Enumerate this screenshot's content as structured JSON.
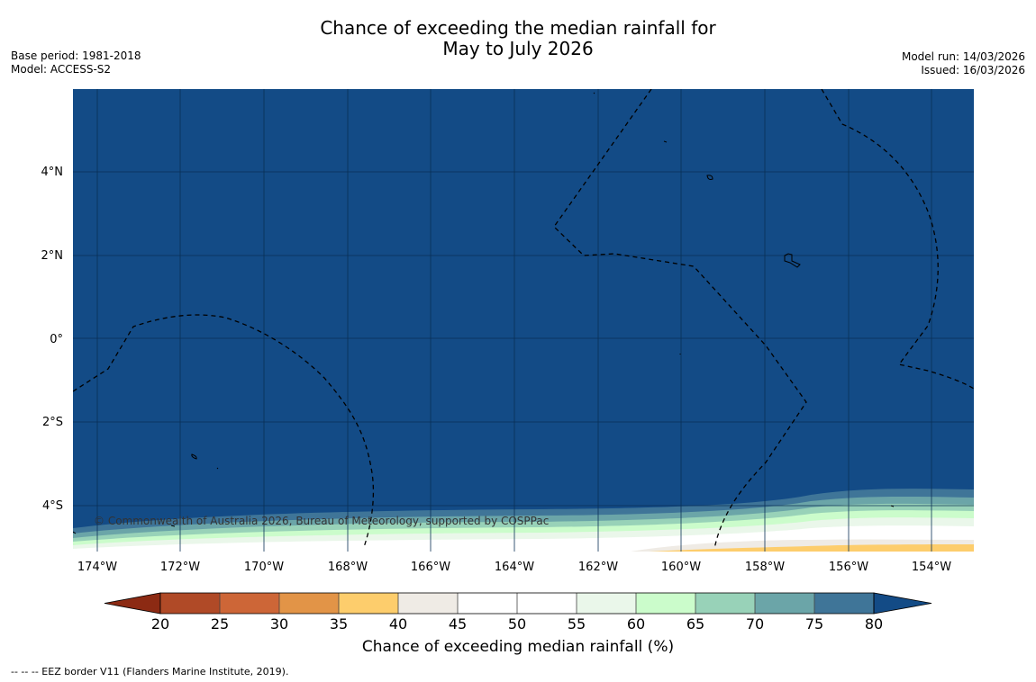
{
  "header": {
    "title_line1": "Chance of exceeding the median rainfall for",
    "title_line2": "May to July 2026",
    "base_period": "Base period: 1981-2018",
    "model": "Model: ACCESS-S2",
    "model_run": "Model run: 14/03/2026",
    "issued": "Issued: 16/03/2026"
  },
  "map": {
    "background_color": "#134b86",
    "lon_ticks": [
      "174°W",
      "172°W",
      "170°W",
      "168°W",
      "166°W",
      "164°W",
      "162°W",
      "160°W",
      "158°W",
      "156°W",
      "154°W"
    ],
    "lat_ticks": [
      "4°N",
      "2°N",
      "0°",
      "2°S",
      "4°S"
    ],
    "copyright": "© Commonwealth of Australia 2026, Bureau of Meteorology, supported by COSPPac"
  },
  "colorbar": {
    "title": "Chance of exceeding median rainfall (%)",
    "ticks": [
      "20",
      "25",
      "30",
      "35",
      "40",
      "45",
      "50",
      "55",
      "60",
      "65",
      "70",
      "75",
      "80"
    ],
    "low_extend_color": "#8c2a13",
    "high_extend_color": "#134b86",
    "colors": [
      "#b04a27",
      "#cd6637",
      "#e29447",
      "#fdcd6c",
      "#efebe5",
      "#ffffff",
      "#ffffff",
      "#eaf7ea",
      "#cbfccb",
      "#98d2b8",
      "#6ba5a8",
      "#3f7598"
    ]
  },
  "footnote": "--  --  -- EEZ border V11 (Flanders Marine Institute, 2019)."
}
